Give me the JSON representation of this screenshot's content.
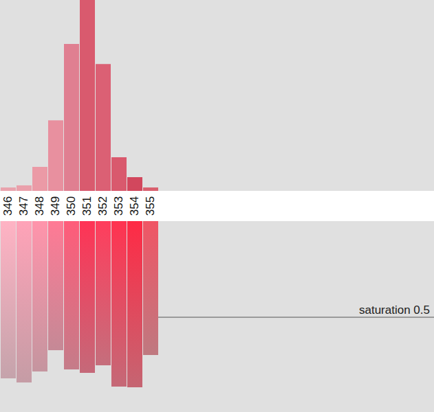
{
  "chart_data": [
    {
      "type": "bar",
      "categories": [
        "346",
        "347",
        "348",
        "349",
        "350",
        "351",
        "352",
        "353",
        "354",
        "355"
      ],
      "values": [
        1.8,
        2.9,
        12.6,
        37,
        77,
        100,
        66.5,
        17.6,
        7.2,
        1.8
      ],
      "colors": [
        "#e9a3ad",
        "#eaa0ab",
        "#eb9aa6",
        "#e8909f",
        "#e07f91",
        "#d95a6e",
        "#db6074",
        "#d9596d",
        "#d2475d",
        "#d9606f"
      ],
      "ylim": [
        0,
        100
      ],
      "tick_labels": "x"
    },
    {
      "type": "bar",
      "categories": [
        "346",
        "347",
        "348",
        "349",
        "350",
        "351",
        "352",
        "353",
        "354",
        "355"
      ],
      "values": [
        0.818,
        0.839,
        0.782,
        0.671,
        0.771,
        0.789,
        0.75,
        0.861,
        0.864,
        0.696
      ],
      "colors": [
        "#ffb3c4",
        "#ffa3b8",
        "#ff94ab",
        "#ff7a95",
        "#ff5c7a",
        "#ff3355",
        "#ff3d5c",
        "#ff3350",
        "#ff2a45",
        "#f05565"
      ],
      "ylim": [
        0,
        1
      ],
      "tick_labels": false,
      "annotations": [
        {
          "text": "saturation 0.5",
          "y": 0.5
        }
      ]
    }
  ]
}
